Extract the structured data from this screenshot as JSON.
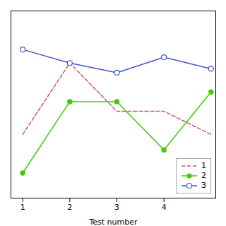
{
  "chart_data": {
    "type": "line",
    "x": [
      1,
      2,
      3,
      4,
      5
    ],
    "series": [
      {
        "name": "1",
        "color": "#cc5566",
        "values": [
          0.38,
          0.75,
          0.5,
          0.5,
          0.38
        ],
        "line_style": "dashed",
        "marker": "none"
      },
      {
        "name": "2",
        "color": "#44cc00",
        "values": [
          0.18,
          0.55,
          0.55,
          0.3,
          0.6
        ],
        "line_style": "solid",
        "marker": "circle"
      },
      {
        "name": "3",
        "color": "#4455cc",
        "values": [
          0.82,
          0.75,
          0.7,
          0.78,
          0.72
        ],
        "line_style": "solid",
        "marker": "open circle"
      }
    ],
    "xlabel": "Test number",
    "xlim": [
      0.75,
      5.1
    ],
    "xticks": [
      1,
      2,
      3,
      4
    ],
    "ylim": [
      0.05,
      1.02
    ],
    "tick_labels": "x",
    "grid": false,
    "legend": "lower right"
  }
}
